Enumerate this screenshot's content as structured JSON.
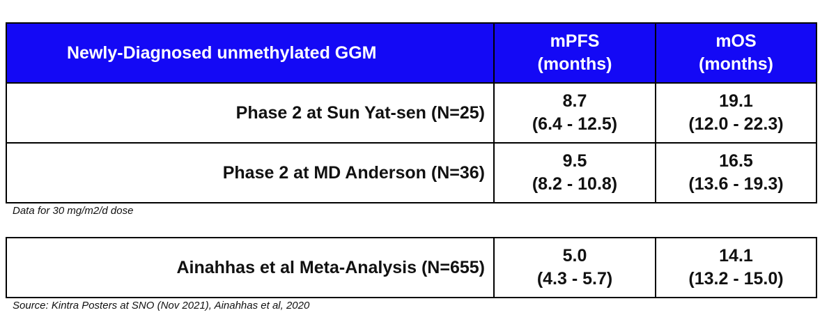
{
  "table": {
    "header": {
      "label": "Newly-Diagnosed unmethylated GGM",
      "columns": [
        [
          "mPFS",
          "(months)"
        ],
        [
          "mOS",
          "(months)"
        ]
      ]
    },
    "rows": [
      {
        "label": "Phase 2 at Sun Yat-sen (N=25)",
        "cells": [
          [
            "8.7",
            "(6.4 - 12.5)"
          ],
          [
            "19.1",
            "(12.0 - 22.3)"
          ]
        ]
      },
      {
        "label": "Phase 2 at MD Anderson (N=36)",
        "cells": [
          [
            "9.5",
            "(8.2 - 10.8)"
          ],
          [
            "16.5",
            "(13.6 - 19.3)"
          ]
        ]
      }
    ]
  },
  "note": "Data for 30 mg/m2/d dose",
  "meta_table": {
    "rows": [
      {
        "label": "Ainahhas et al Meta-Analysis (N=655)",
        "cells": [
          [
            "5.0",
            "(4.3 - 5.7)"
          ],
          [
            "14.1",
            "(13.2 - 15.0)"
          ]
        ]
      }
    ]
  },
  "source": "Source: Kintra Posters at SNO (Nov 2021), Ainahhas et al, 2020"
}
